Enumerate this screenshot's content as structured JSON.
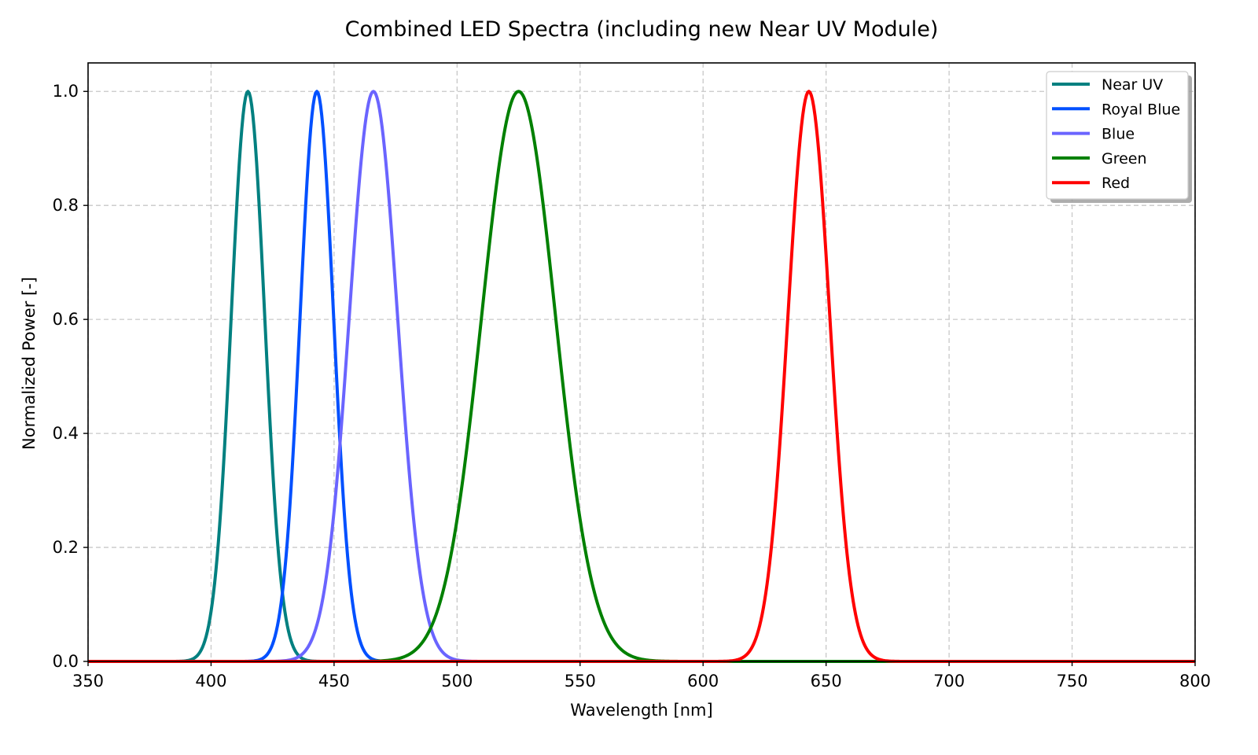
{
  "chart_data": {
    "type": "line",
    "title": "Combined LED Spectra (including new Near UV Module)",
    "xlabel": "Wavelength [nm]",
    "ylabel": "Normalized Power [-]",
    "xlim": [
      350,
      800
    ],
    "ylim": [
      0,
      1.05
    ],
    "xticks": [
      350,
      400,
      450,
      500,
      550,
      600,
      650,
      700,
      750,
      800
    ],
    "xtick_labels": [
      "350",
      "400",
      "450",
      "500",
      "550",
      "600",
      "650",
      "700",
      "750",
      "800"
    ],
    "yticks": [
      0.0,
      0.2,
      0.4,
      0.6,
      0.8,
      1.0
    ],
    "ytick_labels": [
      "0.0",
      "0.2",
      "0.4",
      "0.6",
      "0.8",
      "1.0"
    ],
    "grid": true,
    "legend_position": "upper right",
    "series": [
      {
        "name": "Near UV",
        "color": "#008080",
        "shape": "gaussian",
        "peak_nm": 415,
        "sigma_nm": 6.8,
        "peak_value": 1.0
      },
      {
        "name": "Royal Blue",
        "color": "#0050ff",
        "shape": "gaussian",
        "peak_nm": 443,
        "sigma_nm": 6.8,
        "peak_value": 1.0
      },
      {
        "name": "Blue",
        "color": "#6a64ff",
        "shape": "gaussian",
        "peak_nm": 466,
        "sigma_nm": 9.8,
        "peak_value": 1.0
      },
      {
        "name": "Green",
        "color": "#008000",
        "shape": "gaussian",
        "peak_nm": 525,
        "sigma_nm": 15.0,
        "peak_value": 1.0
      },
      {
        "name": "Red",
        "color": "#ff0000",
        "shape": "gaussian",
        "peak_nm": 643,
        "sigma_nm": 8.5,
        "peak_value": 1.0
      }
    ]
  }
}
